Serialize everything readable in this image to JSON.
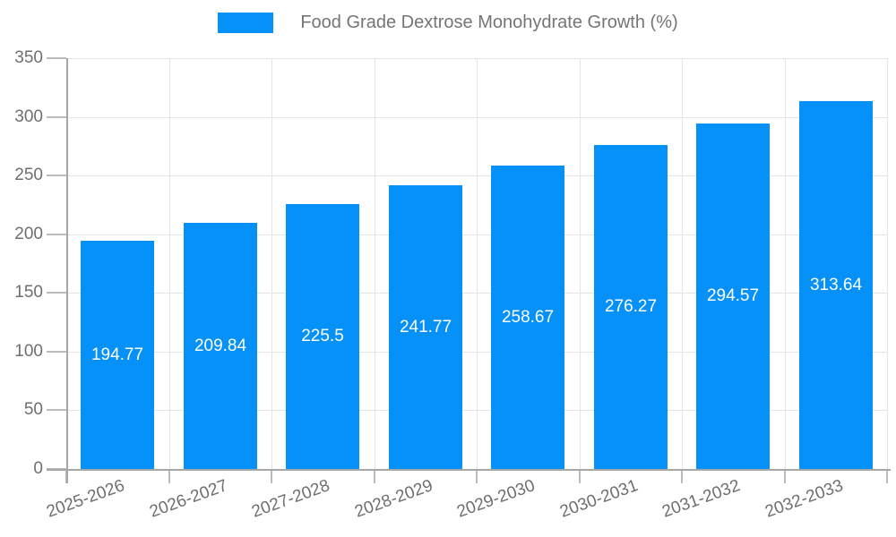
{
  "chart_data": {
    "type": "bar",
    "title": "Food Grade Dextrose Monohydrate Growth (%)",
    "categories": [
      "2025-2026",
      "2026-2027",
      "2027-2028",
      "2028-2029",
      "2029-2030",
      "2030-2031",
      "2031-2032",
      "2032-2033"
    ],
    "values": [
      194.77,
      209.84,
      225.5,
      241.77,
      258.67,
      276.27,
      294.57,
      313.64
    ],
    "value_labels": [
      "194.77",
      "209.84",
      "225.5",
      "241.77",
      "258.67",
      "276.27",
      "294.57",
      "313.64"
    ],
    "xlabel": "",
    "ylabel": "",
    "ylim": [
      0,
      350
    ],
    "ytick_step": 50,
    "ytick_labels": [
      "0",
      "50",
      "100",
      "150",
      "200",
      "250",
      "300",
      "350"
    ],
    "grid": true,
    "legend_position": "top-center",
    "value_label_position": "inside-center",
    "x_label_rotation_deg": -20,
    "colors": {
      "bar": "#0691f8",
      "grid": "#e4e4e4",
      "axis": "#a6a6a6",
      "tick": "#bcbcbc",
      "tick_text": "#6f6f6f",
      "legend_text": "#757575",
      "value_text": "#ffffff",
      "background": "#ffffff"
    }
  }
}
